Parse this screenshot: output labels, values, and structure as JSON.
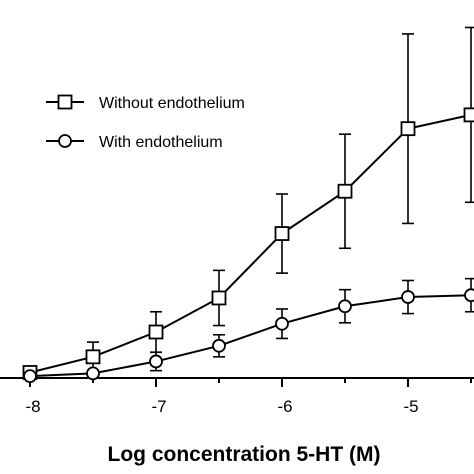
{
  "chart_data": {
    "type": "line",
    "title": "",
    "xlabel": "Log concentration 5-HT (M)",
    "ylabel": "",
    "xlim": [
      -8.05,
      -4.5
    ],
    "ylim": [
      0,
      430
    ],
    "xticks": [
      {
        "value": -8,
        "label": "-8"
      },
      {
        "value": -7,
        "label": "-7"
      },
      {
        "value": -6,
        "label": "-6"
      },
      {
        "value": -5,
        "label": "-5"
      }
    ],
    "grid": false,
    "legend_position": "top-left",
    "series": [
      {
        "name": "Without endothelium",
        "marker": "square",
        "x": [
          -8,
          -7.5,
          -7,
          -6.5,
          -6,
          -5.5,
          -5,
          -4.5
        ],
        "y": [
          6,
          23,
          50,
          87,
          157,
          203,
          271,
          286
        ],
        "err": [
          2,
          16,
          22,
          30,
          43,
          62,
          103,
          95
        ]
      },
      {
        "name": "With endothelium",
        "marker": "circle",
        "x": [
          -8,
          -7.5,
          -7,
          -6.5,
          -6,
          -5.5,
          -5,
          -4.5
        ],
        "y": [
          2,
          5,
          18,
          35,
          59,
          78,
          88,
          90
        ],
        "err": [
          1,
          3,
          10,
          12,
          16,
          18,
          18,
          18
        ]
      }
    ]
  }
}
